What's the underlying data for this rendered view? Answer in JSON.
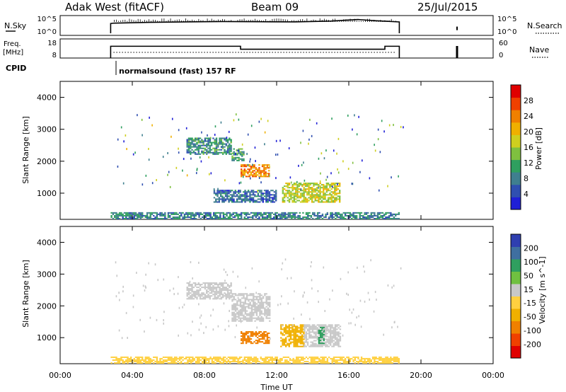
{
  "header": {
    "station": "Adak West (fitACF)",
    "beam": "Beam 09",
    "date": "25/Jul/2015"
  },
  "top_panels": {
    "nsky_label": "N.Sky",
    "nsky_ticks": [
      "10^5",
      "10^0"
    ],
    "nsearch_label": "N.Search",
    "nsearch_ticks": [
      "10^5",
      "10^0"
    ],
    "freq_label_line1": "Freq.",
    "freq_label_line2": "[MHz]",
    "freq_ticks": [
      "18",
      "8"
    ],
    "nave_label": "Nave",
    "nave_ticks": [
      "60",
      "0"
    ],
    "cpid_label": "CPID",
    "cpid_text": "normalsound (fast) 157 RF"
  },
  "x_axis": {
    "label": "Time UT",
    "ticks": [
      "00:00",
      "04:00",
      "08:00",
      "12:00",
      "16:00",
      "20:00",
      "00:00"
    ]
  },
  "colors": {
    "power_scale": [
      "#1f1fd6",
      "#2f4fb0",
      "#3f7f8f",
      "#2f9f5f",
      "#7fc03f",
      "#cfcf1f",
      "#f0b000",
      "#f08000",
      "#f04000",
      "#e00000"
    ],
    "velocity_scale": [
      "#e00000",
      "#f04000",
      "#f08000",
      "#f0b000",
      "#ffd040",
      "#c8c8c8",
      "#70c040",
      "#2f9f5f",
      "#3f6fa0",
      "#2f3fb0"
    ]
  },
  "chart_data": [
    {
      "type": "line",
      "panel": "N.Sky / N.Search",
      "ylabel": "N.Sky",
      "x_units": "hours UT",
      "series": [
        {
          "name": "N.Sky",
          "x": [
            2.8,
            3.0,
            5.0,
            7.0,
            9.0,
            11.0,
            13.0,
            15.0,
            16.5,
            17.5,
            18.8
          ],
          "y": [
            0.6,
            0.62,
            0.66,
            0.68,
            0.7,
            0.69,
            0.68,
            0.72,
            0.8,
            0.74,
            0.68
          ]
        },
        {
          "name": "N.Search",
          "x": [
            22.0
          ],
          "y": [
            0.3
          ]
        }
      ],
      "xlim": [
        0,
        24
      ]
    },
    {
      "type": "line",
      "panel": "Freq / Nave",
      "ylabel": "Freq. [MHz]",
      "x_units": "hours UT",
      "series": [
        {
          "name": "Freq",
          "x": [
            2.8,
            10.0,
            10.0,
            18.0,
            18.0,
            18.8
          ],
          "y": [
            13.0,
            13.0,
            11.0,
            11.0,
            13.0,
            13.0
          ]
        },
        {
          "name": "Nave",
          "x": [
            2.8,
            18.8
          ],
          "y": [
            14,
            14
          ]
        }
      ],
      "xlim": [
        0,
        24
      ],
      "ylim": [
        5,
        18
      ]
    },
    {
      "type": "heatmap",
      "panel": "Power",
      "ylabel": "Slant Range [km]",
      "colorbar_label": "Power [dB]",
      "colorbar_ticks": [
        "28",
        "24",
        "20",
        "16",
        "12",
        "8",
        "4"
      ],
      "y_ticks": [
        "4000",
        "3000",
        "2000",
        "1000"
      ],
      "xlim": [
        0,
        24
      ],
      "ylim": [
        180,
        4500
      ],
      "regions": [
        {
          "t0": 7.0,
          "t1": 9.5,
          "r0": 2200,
          "r1": 2700,
          "value": 9
        },
        {
          "t0": 9.5,
          "t1": 10.2,
          "r0": 2000,
          "r1": 2400,
          "value": 10
        },
        {
          "t0": 10.0,
          "t1": 11.6,
          "r0": 1500,
          "r1": 1900,
          "value": 22
        },
        {
          "t0": 12.3,
          "t1": 15.5,
          "r0": 700,
          "r1": 1300,
          "value": 16
        },
        {
          "t0": 8.5,
          "t1": 12.0,
          "r0": 700,
          "r1": 1100,
          "value": 6
        },
        {
          "t0": 2.8,
          "t1": 18.8,
          "r0": 180,
          "r1": 400,
          "value": 8
        }
      ]
    },
    {
      "type": "heatmap",
      "panel": "Velocity",
      "ylabel": "Slant Range [km]",
      "colorbar_label": "Velocity [m s^-1]",
      "colorbar_ticks": [
        "200",
        "100",
        "50",
        "15",
        "-15",
        "-50",
        "-100",
        "-200"
      ],
      "y_ticks": [
        "4000",
        "3000",
        "2000",
        "1000"
      ],
      "xlim": [
        0,
        24
      ],
      "ylim": [
        180,
        4500
      ],
      "regions": [
        {
          "t0": 7.0,
          "t1": 9.5,
          "r0": 2200,
          "r1": 2700,
          "value": 0
        },
        {
          "t0": 9.5,
          "t1": 11.6,
          "r0": 1500,
          "r1": 2400,
          "value": 0
        },
        {
          "t0": 10.0,
          "t1": 11.6,
          "r0": 800,
          "r1": 1200,
          "value": -60
        },
        {
          "t0": 12.2,
          "t1": 13.5,
          "r0": 700,
          "r1": 1400,
          "value": -40
        },
        {
          "t0": 13.5,
          "t1": 15.5,
          "r0": 700,
          "r1": 1400,
          "value": 5
        },
        {
          "t0": 14.3,
          "t1": 14.6,
          "r0": 800,
          "r1": 1300,
          "value": 40
        },
        {
          "t0": 2.8,
          "t1": 18.8,
          "r0": 180,
          "r1": 400,
          "value": -20
        }
      ]
    }
  ]
}
